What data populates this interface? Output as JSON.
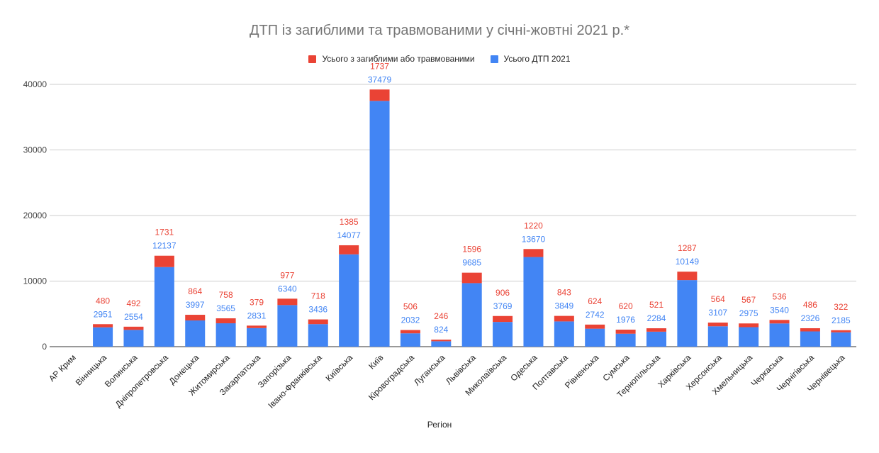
{
  "chart_data": {
    "type": "bar",
    "stacked": true,
    "title": "ДТП із загиблими та травмованими у січні-жовтні 2021 р.*",
    "xlabel": "Регіон",
    "ylabel": "",
    "ylim": [
      0,
      40000
    ],
    "yticks": [
      0,
      10000,
      20000,
      30000,
      40000
    ],
    "grid": true,
    "legend_position": "top",
    "categories": [
      "АР Крим",
      "Вінницька",
      "Волинська",
      "Дніпропетровська",
      "Донецька",
      "Житомирська",
      "Закарпатська",
      "Запорізька",
      "Івано-Франківська",
      "Київська",
      "Київ",
      "Кіровоградська",
      "Луганська",
      "Львівська",
      "Миколаївська",
      "Одеська",
      "Полтавська",
      "Рівненська",
      "Сумська",
      "Тернопільська",
      "Харківська",
      "Херсонська",
      "Хмельницька",
      "Черкаська",
      "Чернігівська",
      "Чернівецька"
    ],
    "series": [
      {
        "name": "Усього ДТП 2021",
        "color": "#4285f4",
        "values": [
          null,
          2951,
          2554,
          12137,
          3997,
          3565,
          2831,
          6340,
          3436,
          14077,
          37479,
          2032,
          824,
          9685,
          3769,
          13670,
          3849,
          2742,
          1976,
          2284,
          10149,
          3107,
          2975,
          3540,
          2326,
          2185
        ]
      },
      {
        "name": "Усього з загиблими або травмованими",
        "color": "#ea4335",
        "values": [
          null,
          480,
          492,
          1731,
          864,
          758,
          379,
          977,
          718,
          1385,
          1737,
          506,
          246,
          1596,
          906,
          1220,
          843,
          624,
          620,
          521,
          1287,
          564,
          567,
          536,
          486,
          322
        ]
      }
    ],
    "legend_order": [
      1,
      0
    ]
  }
}
